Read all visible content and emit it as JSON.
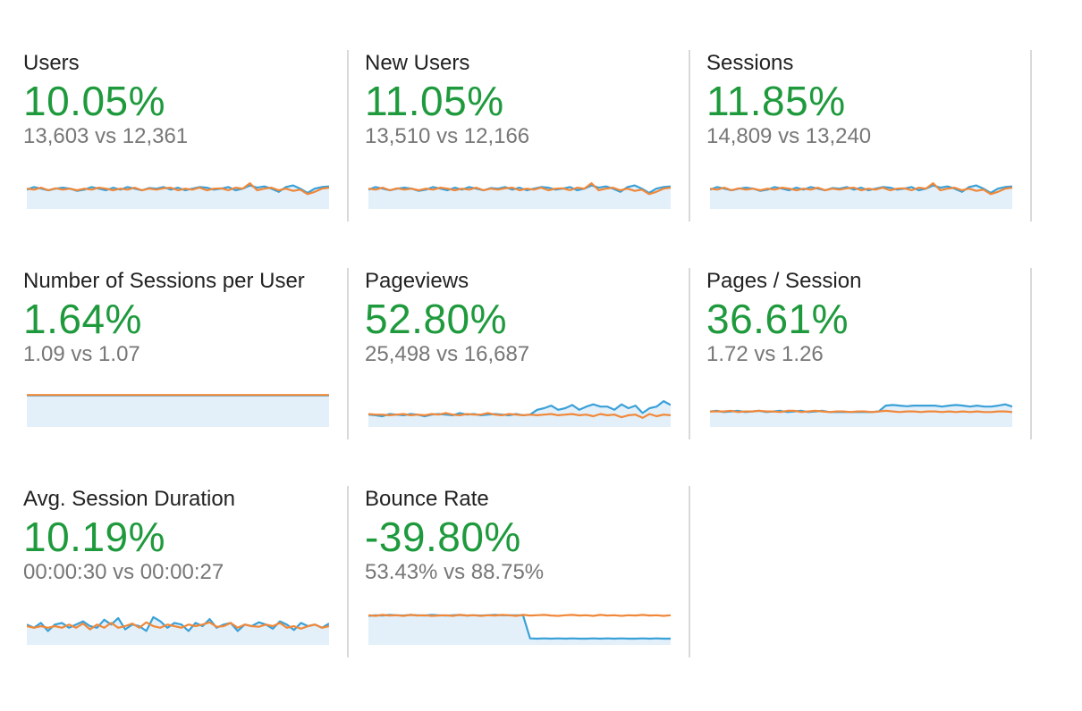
{
  "colors": {
    "positive": "#1e9a3d",
    "current_series": "#3aa0d8",
    "previous_series": "#f0883a",
    "area_fill": "#e3f0fa"
  },
  "metrics": [
    {
      "title": "Users",
      "change": "10.05%",
      "compare": "13,603 vs 12,361"
    },
    {
      "title": "New Users",
      "change": "11.05%",
      "compare": "13,510 vs 12,166"
    },
    {
      "title": "Sessions",
      "change": "11.85%",
      "compare": "14,809 vs 13,240"
    },
    {
      "title": "Number of Sessions per User",
      "change": "1.64%",
      "compare": "1.09 vs 1.07"
    },
    {
      "title": "Pageviews",
      "change": "52.80%",
      "compare": "25,498 vs 16,687"
    },
    {
      "title": "Pages / Session",
      "change": "36.61%",
      "compare": "1.72 vs 1.26"
    },
    {
      "title": "Avg. Session Duration",
      "change": "10.19%",
      "compare": "00:00:30 vs 00:00:27"
    },
    {
      "title": "Bounce Rate",
      "change": "-39.80%",
      "compare": "53.43% vs 88.75%"
    }
  ],
  "chart_data": [
    {
      "type": "line",
      "title": "Users",
      "ylim": [
        0,
        1
      ],
      "series": [
        {
          "values": [
            0.52,
            0.6,
            0.55,
            0.5,
            0.55,
            0.58,
            0.55,
            0.48,
            0.52,
            0.6,
            0.55,
            0.5,
            0.58,
            0.52,
            0.6,
            0.55,
            0.5,
            0.57,
            0.55,
            0.6,
            0.52,
            0.58,
            0.5,
            0.55,
            0.6,
            0.58,
            0.52,
            0.55,
            0.6,
            0.5,
            0.55,
            0.65,
            0.58,
            0.62,
            0.55,
            0.45,
            0.6,
            0.65,
            0.55,
            0.42,
            0.55,
            0.6,
            0.62
          ]
        },
        {
          "values": [
            0.55,
            0.52,
            0.58,
            0.5,
            0.56,
            0.52,
            0.55,
            0.5,
            0.55,
            0.52,
            0.58,
            0.55,
            0.5,
            0.55,
            0.52,
            0.58,
            0.5,
            0.55,
            0.52,
            0.56,
            0.58,
            0.5,
            0.55,
            0.52,
            0.58,
            0.5,
            0.55,
            0.56,
            0.5,
            0.58,
            0.55,
            0.72,
            0.5,
            0.55,
            0.58,
            0.5,
            0.55,
            0.48,
            0.52,
            0.38,
            0.45,
            0.55,
            0.58
          ]
        }
      ]
    },
    {
      "type": "line",
      "title": "New Users",
      "ylim": [
        0,
        1
      ],
      "series": [
        {
          "values": [
            0.52,
            0.6,
            0.55,
            0.5,
            0.55,
            0.58,
            0.55,
            0.48,
            0.52,
            0.6,
            0.55,
            0.5,
            0.58,
            0.52,
            0.6,
            0.55,
            0.5,
            0.57,
            0.55,
            0.6,
            0.52,
            0.58,
            0.5,
            0.55,
            0.6,
            0.58,
            0.52,
            0.55,
            0.6,
            0.5,
            0.55,
            0.65,
            0.58,
            0.62,
            0.55,
            0.45,
            0.6,
            0.65,
            0.55,
            0.42,
            0.55,
            0.6,
            0.62
          ]
        },
        {
          "values": [
            0.55,
            0.52,
            0.58,
            0.5,
            0.56,
            0.52,
            0.55,
            0.5,
            0.55,
            0.52,
            0.58,
            0.55,
            0.5,
            0.55,
            0.52,
            0.58,
            0.5,
            0.55,
            0.52,
            0.56,
            0.58,
            0.5,
            0.55,
            0.52,
            0.58,
            0.5,
            0.55,
            0.56,
            0.5,
            0.58,
            0.55,
            0.72,
            0.5,
            0.55,
            0.58,
            0.5,
            0.55,
            0.48,
            0.52,
            0.38,
            0.45,
            0.55,
            0.58
          ]
        }
      ]
    },
    {
      "type": "line",
      "title": "Sessions",
      "ylim": [
        0,
        1
      ],
      "series": [
        {
          "values": [
            0.52,
            0.6,
            0.55,
            0.5,
            0.55,
            0.58,
            0.55,
            0.48,
            0.52,
            0.6,
            0.55,
            0.5,
            0.58,
            0.52,
            0.6,
            0.55,
            0.5,
            0.57,
            0.55,
            0.6,
            0.52,
            0.58,
            0.5,
            0.55,
            0.6,
            0.58,
            0.52,
            0.55,
            0.6,
            0.5,
            0.55,
            0.65,
            0.58,
            0.62,
            0.55,
            0.45,
            0.6,
            0.65,
            0.55,
            0.42,
            0.55,
            0.6,
            0.62
          ]
        },
        {
          "values": [
            0.55,
            0.52,
            0.58,
            0.5,
            0.56,
            0.52,
            0.55,
            0.5,
            0.55,
            0.52,
            0.58,
            0.55,
            0.5,
            0.55,
            0.52,
            0.58,
            0.5,
            0.55,
            0.52,
            0.56,
            0.58,
            0.5,
            0.55,
            0.52,
            0.58,
            0.5,
            0.55,
            0.56,
            0.5,
            0.58,
            0.55,
            0.72,
            0.5,
            0.55,
            0.58,
            0.5,
            0.55,
            0.48,
            0.52,
            0.38,
            0.45,
            0.55,
            0.58
          ]
        }
      ]
    },
    {
      "type": "line",
      "title": "Number of Sessions per User",
      "ylim": [
        0,
        1
      ],
      "series": [
        {
          "values": [
            0.9,
            0.9,
            0.9,
            0.9,
            0.9,
            0.9,
            0.9,
            0.9,
            0.9,
            0.9,
            0.9,
            0.9,
            0.9,
            0.9,
            0.9,
            0.9,
            0.9,
            0.9,
            0.9,
            0.9
          ]
        },
        {
          "values": [
            0.91,
            0.91,
            0.91,
            0.91,
            0.91,
            0.91,
            0.91,
            0.91,
            0.91,
            0.91,
            0.91,
            0.91,
            0.91,
            0.91,
            0.91,
            0.91,
            0.91,
            0.91,
            0.91,
            0.91
          ]
        }
      ]
    },
    {
      "type": "line",
      "title": "Pageviews",
      "ylim": [
        0,
        1
      ],
      "series": [
        {
          "values": [
            0.3,
            0.28,
            0.25,
            0.32,
            0.3,
            0.28,
            0.32,
            0.3,
            0.25,
            0.3,
            0.32,
            0.3,
            0.28,
            0.35,
            0.3,
            0.32,
            0.28,
            0.3,
            0.32,
            0.3,
            0.28,
            0.32,
            0.28,
            0.3,
            0.45,
            0.5,
            0.58,
            0.45,
            0.5,
            0.6,
            0.45,
            0.55,
            0.62,
            0.55,
            0.55,
            0.45,
            0.62,
            0.5,
            0.58,
            0.35,
            0.5,
            0.55,
            0.72,
            0.6
          ]
        },
        {
          "values": [
            0.32,
            0.3,
            0.3,
            0.28,
            0.3,
            0.32,
            0.28,
            0.3,
            0.28,
            0.32,
            0.3,
            0.35,
            0.3,
            0.28,
            0.32,
            0.3,
            0.3,
            0.35,
            0.3,
            0.28,
            0.32,
            0.3,
            0.28,
            0.3,
            0.28,
            0.3,
            0.32,
            0.28,
            0.3,
            0.32,
            0.28,
            0.3,
            0.25,
            0.32,
            0.28,
            0.3,
            0.22,
            0.28,
            0.3,
            0.2,
            0.32,
            0.25,
            0.3,
            0.28
          ]
        }
      ]
    },
    {
      "type": "line",
      "title": "Pages / Session",
      "ylim": [
        0,
        1
      ],
      "series": [
        {
          "values": [
            0.4,
            0.42,
            0.38,
            0.4,
            0.42,
            0.38,
            0.4,
            0.42,
            0.38,
            0.4,
            0.42,
            0.38,
            0.4,
            0.42,
            0.38,
            0.4,
            0.42,
            0.38,
            0.38,
            0.38,
            0.38,
            0.38,
            0.38,
            0.38,
            0.4,
            0.58,
            0.6,
            0.58,
            0.56,
            0.58,
            0.58,
            0.58,
            0.58,
            0.55,
            0.58,
            0.6,
            0.58,
            0.55,
            0.58,
            0.55,
            0.55,
            0.58,
            0.62,
            0.55
          ]
        },
        {
          "values": [
            0.4,
            0.4,
            0.4,
            0.42,
            0.38,
            0.4,
            0.4,
            0.42,
            0.4,
            0.4,
            0.38,
            0.42,
            0.42,
            0.38,
            0.4,
            0.42,
            0.4,
            0.38,
            0.4,
            0.4,
            0.38,
            0.4,
            0.4,
            0.38,
            0.4,
            0.42,
            0.4,
            0.38,
            0.4,
            0.4,
            0.38,
            0.4,
            0.4,
            0.38,
            0.4,
            0.38,
            0.4,
            0.38,
            0.4,
            0.38,
            0.38,
            0.4,
            0.4,
            0.38
          ]
        }
      ]
    },
    {
      "type": "line",
      "title": "Avg. Session Duration",
      "ylim": [
        0,
        1
      ],
      "series": [
        {
          "values": [
            0.55,
            0.45,
            0.6,
            0.35,
            0.55,
            0.6,
            0.45,
            0.55,
            0.65,
            0.5,
            0.45,
            0.7,
            0.55,
            0.75,
            0.4,
            0.55,
            0.5,
            0.35,
            0.78,
            0.65,
            0.45,
            0.6,
            0.55,
            0.35,
            0.6,
            0.5,
            0.72,
            0.45,
            0.55,
            0.6,
            0.35,
            0.55,
            0.5,
            0.62,
            0.55,
            0.42,
            0.65,
            0.55,
            0.38,
            0.6,
            0.5,
            0.55,
            0.45,
            0.58
          ]
        },
        {
          "values": [
            0.5,
            0.45,
            0.5,
            0.45,
            0.5,
            0.45,
            0.55,
            0.45,
            0.58,
            0.4,
            0.55,
            0.45,
            0.6,
            0.45,
            0.5,
            0.58,
            0.45,
            0.62,
            0.5,
            0.45,
            0.55,
            0.5,
            0.45,
            0.55,
            0.5,
            0.55,
            0.62,
            0.48,
            0.5,
            0.6,
            0.45,
            0.55,
            0.5,
            0.48,
            0.55,
            0.5,
            0.6,
            0.45,
            0.5,
            0.42,
            0.5,
            0.55,
            0.45,
            0.5
          ]
        }
      ]
    },
    {
      "type": "line",
      "title": "Bounce Rate",
      "ylim": [
        0,
        1
      ],
      "series": [
        {
          "values": [
            0.82,
            0.84,
            0.83,
            0.85,
            0.84,
            0.83,
            0.85,
            0.84,
            0.83,
            0.85,
            0.84,
            0.83,
            0.84,
            0.85,
            0.83,
            0.84,
            0.83,
            0.84,
            0.85,
            0.84,
            0.84,
            0.84,
            0.84,
            0.12,
            0.11,
            0.12,
            0.11,
            0.12,
            0.11,
            0.12,
            0.11,
            0.11,
            0.12,
            0.11,
            0.12,
            0.11,
            0.12,
            0.11,
            0.11,
            0.12,
            0.11,
            0.12,
            0.11,
            0.11
          ]
        },
        {
          "values": [
            0.84,
            0.82,
            0.85,
            0.83,
            0.84,
            0.82,
            0.85,
            0.83,
            0.84,
            0.82,
            0.83,
            0.84,
            0.82,
            0.85,
            0.83,
            0.84,
            0.82,
            0.84,
            0.83,
            0.85,
            0.84,
            0.82,
            0.85,
            0.83,
            0.84,
            0.85,
            0.83,
            0.82,
            0.84,
            0.85,
            0.83,
            0.84,
            0.82,
            0.85,
            0.83,
            0.84,
            0.82,
            0.84,
            0.83,
            0.85,
            0.83,
            0.84,
            0.82,
            0.84
          ]
        }
      ]
    }
  ]
}
